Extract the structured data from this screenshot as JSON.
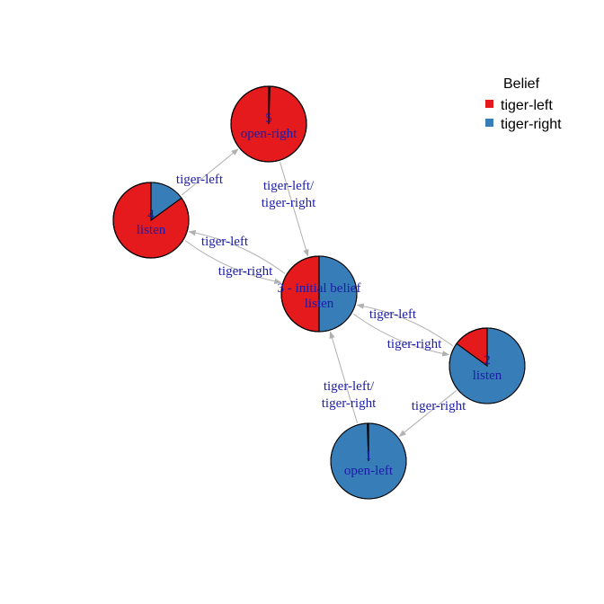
{
  "legend": {
    "title": "Belief",
    "items": [
      {
        "label": "tiger-left",
        "color": "#E41A1C"
      },
      {
        "label": "tiger-right",
        "color": "#377EB8"
      }
    ]
  },
  "nodes": [
    {
      "id": "1",
      "label": "1",
      "action": "open-left",
      "belief_tiger_left": 0.005
    },
    {
      "id": "2",
      "label": "2",
      "action": "listen",
      "belief_tiger_left": 0.15
    },
    {
      "id": "3",
      "label": "3 - initial belief",
      "action": "listen",
      "belief_tiger_left": 0.5
    },
    {
      "id": "4",
      "label": "4",
      "action": "listen",
      "belief_tiger_left": 0.85
    },
    {
      "id": "5",
      "label": "5",
      "action": "open-right",
      "belief_tiger_left": 0.995
    }
  ],
  "edges": [
    {
      "from": "4",
      "to": "5",
      "label": [
        "tiger-left"
      ]
    },
    {
      "from": "5",
      "to": "3",
      "label": [
        "tiger-left/",
        "tiger-right"
      ]
    },
    {
      "from": "3",
      "to": "4",
      "label": [
        "tiger-left"
      ]
    },
    {
      "from": "4",
      "to": "3",
      "label": [
        "tiger-right"
      ]
    },
    {
      "from": "2",
      "to": "3",
      "label": [
        "tiger-left"
      ]
    },
    {
      "from": "3",
      "to": "2",
      "label": [
        "tiger-right"
      ]
    },
    {
      "from": "2",
      "to": "1",
      "label": [
        "tiger-right"
      ]
    },
    {
      "from": "1",
      "to": "3",
      "label": [
        "tiger-left/",
        "tiger-right"
      ]
    }
  ],
  "colors": {
    "edge": "#B0B0B0",
    "label": "#1C1CA8",
    "outline": "#000000"
  }
}
